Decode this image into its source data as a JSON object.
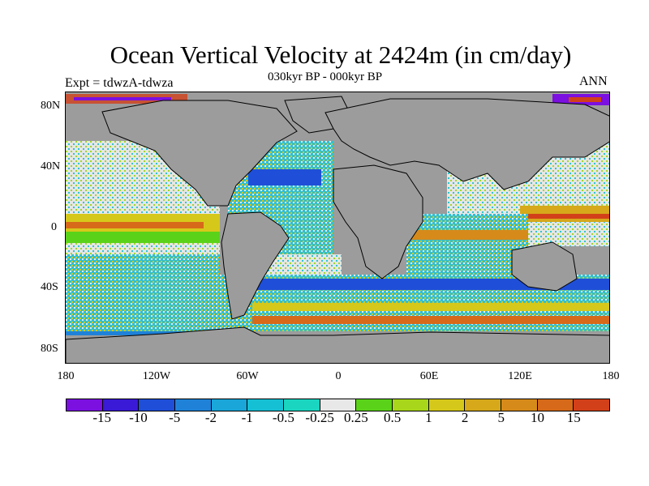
{
  "title": "Ocean Vertical Velocity at 2424m (in cm/day)",
  "subtitle": "030kyr BP - 000kyr BP",
  "left_label": "Expt = tdwzA-tdwza",
  "right_label": "ANN",
  "map": {
    "projection": "cylindrical equidistant",
    "lon_range": [
      -180,
      180
    ],
    "lat_range": [
      -90,
      90
    ],
    "land_color": "#9c9c9c",
    "lat_ticks": [
      "80N",
      "40N",
      "0",
      "40S",
      "80S"
    ],
    "lon_ticks": [
      "180",
      "120W",
      "60W",
      "0",
      "60E",
      "120E",
      "180"
    ]
  },
  "colorbar": {
    "colors": [
      "#7b10e0",
      "#3a1ad6",
      "#1f4fd8",
      "#1f82d8",
      "#1aa6d8",
      "#16c0d4",
      "#1ad6c0",
      "#e8e8e8",
      "#5ad21a",
      "#a8d61a",
      "#d6c81a",
      "#d6a81a",
      "#d68a1a",
      "#d66a1a",
      "#d2401a"
    ],
    "labels": [
      "-15",
      "-10",
      "-5",
      "-2",
      "-1",
      "-0.5",
      "-0.25",
      "0.25",
      "0.5",
      "1",
      "2",
      "5",
      "10",
      "15"
    ]
  }
}
